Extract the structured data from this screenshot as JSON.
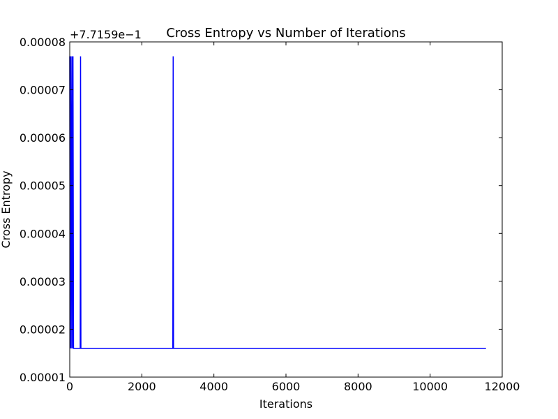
{
  "chart_data": {
    "type": "line",
    "title": "Cross Entropy vs Number of Iterations",
    "xlabel": "Iterations",
    "ylabel": "Cross Entropy",
    "xlim": [
      0,
      12000
    ],
    "ylim": [
      1e-05,
      8e-05
    ],
    "x_ticks": [
      0,
      2000,
      4000,
      6000,
      8000,
      10000,
      12000
    ],
    "x_tick_labels": [
      "0",
      "2000",
      "4000",
      "6000",
      "8000",
      "10000",
      "12000"
    ],
    "y_ticks": [
      1e-05,
      2e-05,
      3e-05,
      4e-05,
      5e-05,
      6e-05,
      7e-05,
      8e-05
    ],
    "y_tick_labels": [
      "0.00001",
      "0.00002",
      "0.00003",
      "0.00004",
      "0.00005",
      "0.00006",
      "0.00007",
      "0.00008"
    ],
    "y_offset_label": "+7.7159e−1",
    "grid": false,
    "series": [
      {
        "color": "#0000ff",
        "points": [
          [
            0,
            7.7e-05
          ],
          [
            10,
            1.6e-05
          ],
          [
            25,
            7.7e-05
          ],
          [
            40,
            1.6e-05
          ],
          [
            60,
            7.7e-05
          ],
          [
            75,
            1.6e-05
          ],
          [
            90,
            7.7e-05
          ],
          [
            105,
            1.6e-05
          ],
          [
            290,
            1.6e-05
          ],
          [
            300,
            7.7e-05
          ],
          [
            310,
            1.6e-05
          ],
          [
            2860,
            1.6e-05
          ],
          [
            2870,
            7.7e-05
          ],
          [
            2880,
            1.6e-05
          ],
          [
            11550,
            1.6e-05
          ]
        ]
      }
    ]
  }
}
